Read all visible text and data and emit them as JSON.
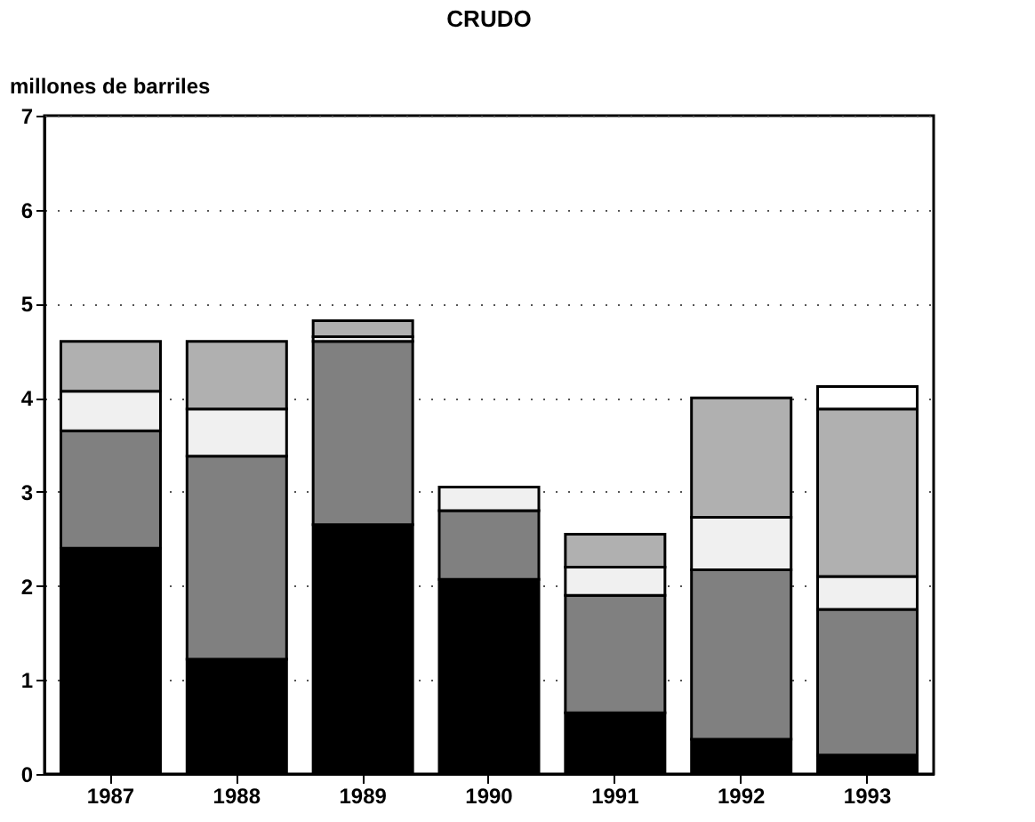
{
  "chart_data": {
    "type": "bar",
    "title": "CRUDO",
    "ylabel": "millones de barriles",
    "stacked": true,
    "categories": [
      "1987",
      "1988",
      "1989",
      "1990",
      "1991",
      "1992",
      "1993"
    ],
    "series": [
      {
        "color": "#000000",
        "values": [
          2.4,
          1.22,
          2.65,
          2.07,
          0.65,
          0.37,
          0.2
        ]
      },
      {
        "color": "#808080",
        "values": [
          1.25,
          2.16,
          1.95,
          0.73,
          1.25,
          1.8,
          1.55
        ]
      },
      {
        "color": "#f0f0f0",
        "values": [
          0.42,
          0.5,
          0.05,
          0.25,
          0.3,
          0.56,
          0.35
        ]
      },
      {
        "color": "#b0b0b0",
        "values": [
          0.53,
          0.72,
          0.17,
          null,
          0.35,
          1.27,
          1.78
        ]
      },
      {
        "color": "#ffffff",
        "values": [
          null,
          null,
          null,
          null,
          null,
          null,
          0.24
        ]
      }
    ],
    "ylim": [
      0,
      7
    ],
    "yticks": [
      0,
      1,
      2,
      3,
      4,
      5,
      6,
      7
    ],
    "grid": "y",
    "legend": false
  }
}
